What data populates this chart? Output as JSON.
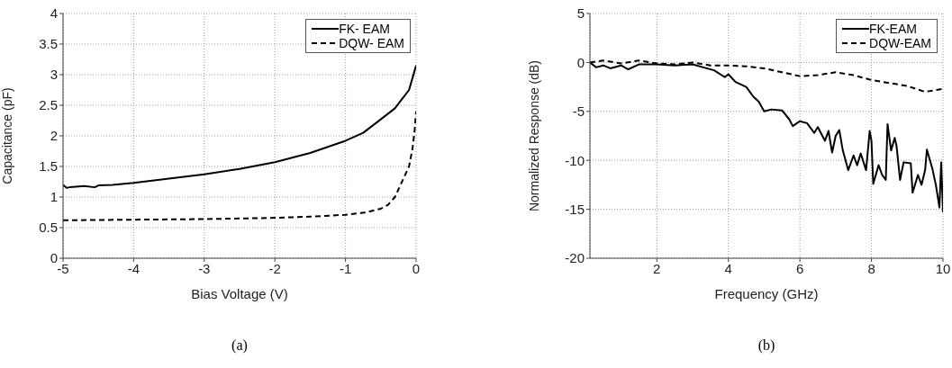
{
  "chart_data": [
    {
      "type": "line",
      "xlabel": "Bias Voltage (V)",
      "ylabel": "Capacitance (pF)",
      "annotations": [
        "(a)"
      ],
      "xlim": [
        -5,
        0
      ],
      "ylim": [
        0,
        4
      ],
      "xticks": [
        -5,
        -4,
        -3,
        -2,
        -1,
        0
      ],
      "yticks": [
        0,
        0.5,
        1,
        1.5,
        2,
        2.5,
        3,
        3.5,
        4
      ],
      "grid": true,
      "legend": "top right",
      "marker": "none",
      "series": [
        {
          "name": "FK- EAM",
          "color": "#000000",
          "line_style": "solid",
          "x": [
            -5,
            -4.95,
            -4.9,
            -4.7,
            -4.55,
            -4.5,
            -4.3,
            -4,
            -3.5,
            -3,
            -2.5,
            -2,
            -1.5,
            -1,
            -0.75,
            -0.5,
            -0.3,
            -0.2,
            -0.1,
            -0.05,
            0
          ],
          "values": [
            1.2,
            1.15,
            1.16,
            1.18,
            1.16,
            1.19,
            1.2,
            1.23,
            1.3,
            1.37,
            1.46,
            1.57,
            1.72,
            1.92,
            2.05,
            2.27,
            2.45,
            2.6,
            2.75,
            2.95,
            3.15
          ]
        },
        {
          "name": "DQW- EAM",
          "color": "#000000",
          "line_style": "dashed",
          "x": [
            -5,
            -4,
            -3,
            -2,
            -1.5,
            -1,
            -0.7,
            -0.5,
            -0.4,
            -0.3,
            -0.2,
            -0.1,
            -0.05,
            -0.02,
            0
          ],
          "values": [
            0.62,
            0.63,
            0.64,
            0.66,
            0.68,
            0.71,
            0.75,
            0.81,
            0.87,
            1.0,
            1.25,
            1.5,
            1.8,
            2.1,
            2.4
          ]
        }
      ]
    },
    {
      "type": "line",
      "xlabel": "Frequency (GHz)",
      "ylabel": "Normalized Response (dB)",
      "annotations": [
        "(b)"
      ],
      "xlim": [
        0.13,
        10
      ],
      "ylim": [
        -20,
        5
      ],
      "xticks": [
        2,
        4,
        6,
        8,
        10
      ],
      "yticks": [
        -20,
        -15,
        -10,
        -5,
        0,
        5
      ],
      "grid": true,
      "legend": "top right",
      "marker": "none",
      "series": [
        {
          "name": "FK-EAM",
          "color": "#000000",
          "line_style": "solid",
          "x": [
            0.13,
            0.3,
            0.5,
            0.7,
            1,
            1.2,
            1.5,
            2,
            2.5,
            3,
            3.3,
            3.6,
            3.9,
            4,
            4.2,
            4.5,
            4.7,
            4.85,
            5,
            5.2,
            5.5,
            5.7,
            5.8,
            6,
            6.2,
            6.4,
            6.5,
            6.7,
            6.8,
            6.9,
            7,
            7.1,
            7.2,
            7.35,
            7.5,
            7.6,
            7.7,
            7.85,
            7.95,
            8,
            8.05,
            8.2,
            8.3,
            8.4,
            8.45,
            8.55,
            8.65,
            8.7,
            8.8,
            8.9,
            9.1,
            9.15,
            9.3,
            9.4,
            9.5,
            9.55,
            9.7,
            9.8,
            9.9,
            9.95,
            10
          ],
          "values": [
            0,
            -0.5,
            -0.3,
            -0.6,
            -0.3,
            -0.7,
            -0.2,
            -0.2,
            -0.3,
            -0.2,
            -0.5,
            -0.8,
            -1.5,
            -1.2,
            -2,
            -2.5,
            -3.5,
            -4,
            -5,
            -4.8,
            -4.9,
            -5.8,
            -6.5,
            -6,
            -6.2,
            -7.2,
            -6.6,
            -8,
            -7,
            -9.2,
            -7.5,
            -6.9,
            -9,
            -11,
            -9.5,
            -10.5,
            -9.3,
            -11,
            -7,
            -8,
            -12.4,
            -10.5,
            -11.5,
            -12,
            -6.3,
            -9,
            -7.7,
            -8.5,
            -12,
            -10.2,
            -10.3,
            -13.3,
            -11.5,
            -12.5,
            -11,
            -8.9,
            -10.8,
            -12.5,
            -14.8,
            -10.2,
            -15.3
          ]
        },
        {
          "name": "DQW-EAM",
          "color": "#000000",
          "line_style": "dashed",
          "x": [
            0.13,
            0.5,
            1,
            1.5,
            2,
            2.5,
            3,
            3.5,
            4,
            4.5,
            5,
            5.5,
            6,
            6.5,
            7,
            7.5,
            8,
            8.5,
            9,
            9.5,
            10
          ],
          "values": [
            0,
            0.2,
            -0.1,
            0.2,
            -0.1,
            -0.2,
            0,
            -0.3,
            -0.3,
            -0.4,
            -0.6,
            -1,
            -1.4,
            -1.3,
            -1,
            -1.3,
            -1.8,
            -2.1,
            -2.4,
            -3,
            -2.7
          ]
        }
      ]
    }
  ]
}
